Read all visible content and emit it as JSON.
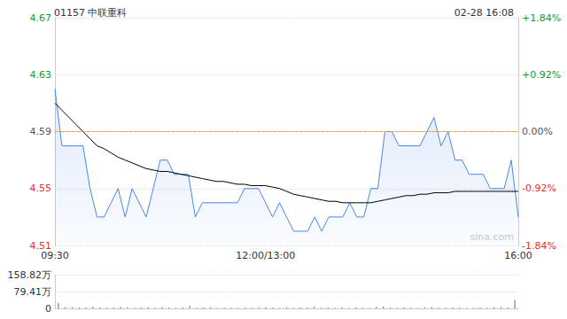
{
  "chart_data": [
    {
      "type": "line",
      "title": "01157 中联重科",
      "subtitle": "02-28 16:08",
      "annotations": [
        "sina.com"
      ],
      "categories": [
        "09:30",
        null,
        null,
        null,
        null,
        null,
        null,
        null,
        null,
        null,
        null,
        null,
        null,
        null,
        null,
        null,
        null,
        null,
        null,
        null,
        null,
        null,
        null,
        null,
        null,
        null,
        null,
        null,
        null,
        null,
        "12:00/13:00",
        null,
        null,
        null,
        null,
        null,
        null,
        null,
        null,
        null,
        null,
        null,
        null,
        null,
        null,
        null,
        null,
        null,
        null,
        null,
        null,
        null,
        null,
        null,
        null,
        null,
        null,
        null,
        null,
        null,
        null,
        null,
        null,
        null,
        null,
        null,
        "16:00"
      ],
      "series": [
        {
          "color": "#4a86e8",
          "line_style": "solid",
          "values": [
            4.62,
            4.58,
            4.58,
            4.58,
            4.58,
            4.55,
            4.53,
            4.53,
            4.54,
            4.55,
            4.53,
            4.55,
            4.54,
            4.53,
            4.55,
            4.57,
            4.57,
            4.56,
            4.56,
            4.56,
            4.53,
            4.54,
            4.54,
            4.54,
            4.54,
            4.54,
            4.54,
            4.55,
            4.55,
            4.55,
            4.54,
            4.53,
            4.54,
            4.53,
            4.52,
            4.52,
            4.52,
            4.53,
            4.52,
            4.53,
            4.53,
            4.53,
            4.54,
            4.53,
            4.53,
            4.55,
            4.55,
            4.59,
            4.59,
            4.58,
            4.58,
            4.58,
            4.58,
            4.59,
            4.6,
            4.58,
            4.59,
            4.57,
            4.57,
            4.56,
            4.56,
            4.56,
            4.55,
            4.55,
            4.55,
            4.57,
            4.53
          ]
        },
        {
          "color": "#000000",
          "line_style": "solid",
          "values": [
            4.61,
            4.605,
            4.6,
            4.595,
            4.59,
            4.585,
            4.58,
            4.578,
            4.575,
            4.572,
            4.57,
            4.568,
            4.566,
            4.564,
            4.563,
            4.562,
            4.562,
            4.561,
            4.56,
            4.559,
            4.558,
            4.557,
            4.556,
            4.555,
            4.555,
            4.554,
            4.553,
            4.553,
            4.552,
            4.552,
            4.552,
            4.551,
            4.55,
            4.548,
            4.546,
            4.545,
            4.544,
            4.543,
            4.542,
            4.541,
            4.541,
            4.54,
            4.54,
            4.54,
            4.54,
            4.54,
            4.541,
            4.542,
            4.543,
            4.544,
            4.545,
            4.545,
            4.546,
            4.546,
            4.547,
            4.547,
            4.547,
            4.548,
            4.548,
            4.548,
            4.548,
            4.548,
            4.548,
            4.548,
            4.548,
            4.548,
            4.548
          ]
        }
      ],
      "reference_line": 4.59,
      "ylim": [
        4.51,
        4.67
      ],
      "yticks": [
        4.51,
        4.55,
        4.59,
        4.63,
        4.67
      ],
      "y2lim": [
        -1.84,
        1.84
      ],
      "y2ticks": [
        {
          "value": -1.84,
          "label": "-1.84%"
        },
        {
          "value": -0.92,
          "label": "-0.92%"
        },
        {
          "value": 0,
          "label": "0.00%"
        },
        {
          "value": 0.92,
          "label": "+0.92%"
        },
        {
          "value": 1.84,
          "label": "+1.84%"
        }
      ],
      "grid": true
    },
    {
      "type": "bar",
      "color": "#666666",
      "tick_labels": "y",
      "categories": [
        null,
        null,
        null,
        null,
        null,
        null,
        null,
        null,
        null,
        null,
        null,
        null,
        null,
        null,
        null,
        null,
        null,
        null,
        null,
        null,
        null,
        null,
        null,
        null,
        null,
        null,
        null,
        null,
        null,
        null,
        null,
        null,
        null,
        null,
        null,
        null,
        null,
        null,
        null,
        null,
        null,
        null,
        null,
        null,
        null,
        null,
        null,
        null,
        null,
        null,
        null,
        null,
        null,
        null,
        null,
        null,
        null,
        null,
        null,
        null,
        null,
        null,
        null,
        null,
        null,
        null,
        null
      ],
      "values": [
        25,
        6,
        5,
        4,
        4,
        8,
        5,
        3,
        4,
        6,
        5,
        3,
        4,
        5,
        3,
        6,
        4,
        3,
        4,
        12,
        3,
        4,
        5,
        3,
        3,
        3,
        2,
        4,
        3,
        5,
        6,
        4,
        3,
        5,
        3,
        4,
        4,
        8,
        3,
        4,
        3,
        5,
        2,
        4,
        3,
        3,
        7,
        9,
        4,
        3,
        5,
        3,
        2,
        4,
        6,
        3,
        3,
        5,
        4,
        2,
        3,
        4,
        3,
        5,
        6,
        4,
        40
      ],
      "ylim": [
        0,
        158.82
      ],
      "yticks": [
        0,
        {
          "value": 79.41,
          "label": "79.41万"
        },
        {
          "value": 158.82,
          "label": "158.82万"
        }
      ]
    }
  ]
}
